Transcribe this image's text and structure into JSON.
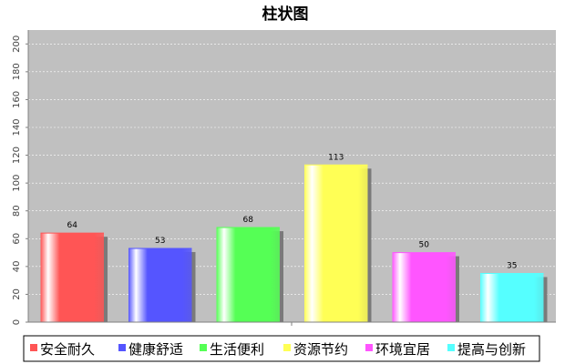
{
  "chart_data": {
    "type": "bar",
    "title": "柱状图",
    "categories": [
      "安全耐久",
      "健康舒适",
      "生活便利",
      "资源节约",
      "环境宜居",
      "提高与创新"
    ],
    "values": [
      64,
      53,
      68,
      113,
      50,
      35
    ],
    "colors": [
      "#ff5555",
      "#5555ff",
      "#55ff55",
      "#ffff55",
      "#ff55ff",
      "#55ffff"
    ],
    "ylim": [
      0,
      210
    ],
    "yticks": [
      0,
      20,
      40,
      60,
      80,
      100,
      120,
      140,
      160,
      180,
      200
    ],
    "xlabel": "",
    "ylabel": "",
    "grid": true,
    "legend": "bottom",
    "background": "#c0c0c0"
  }
}
